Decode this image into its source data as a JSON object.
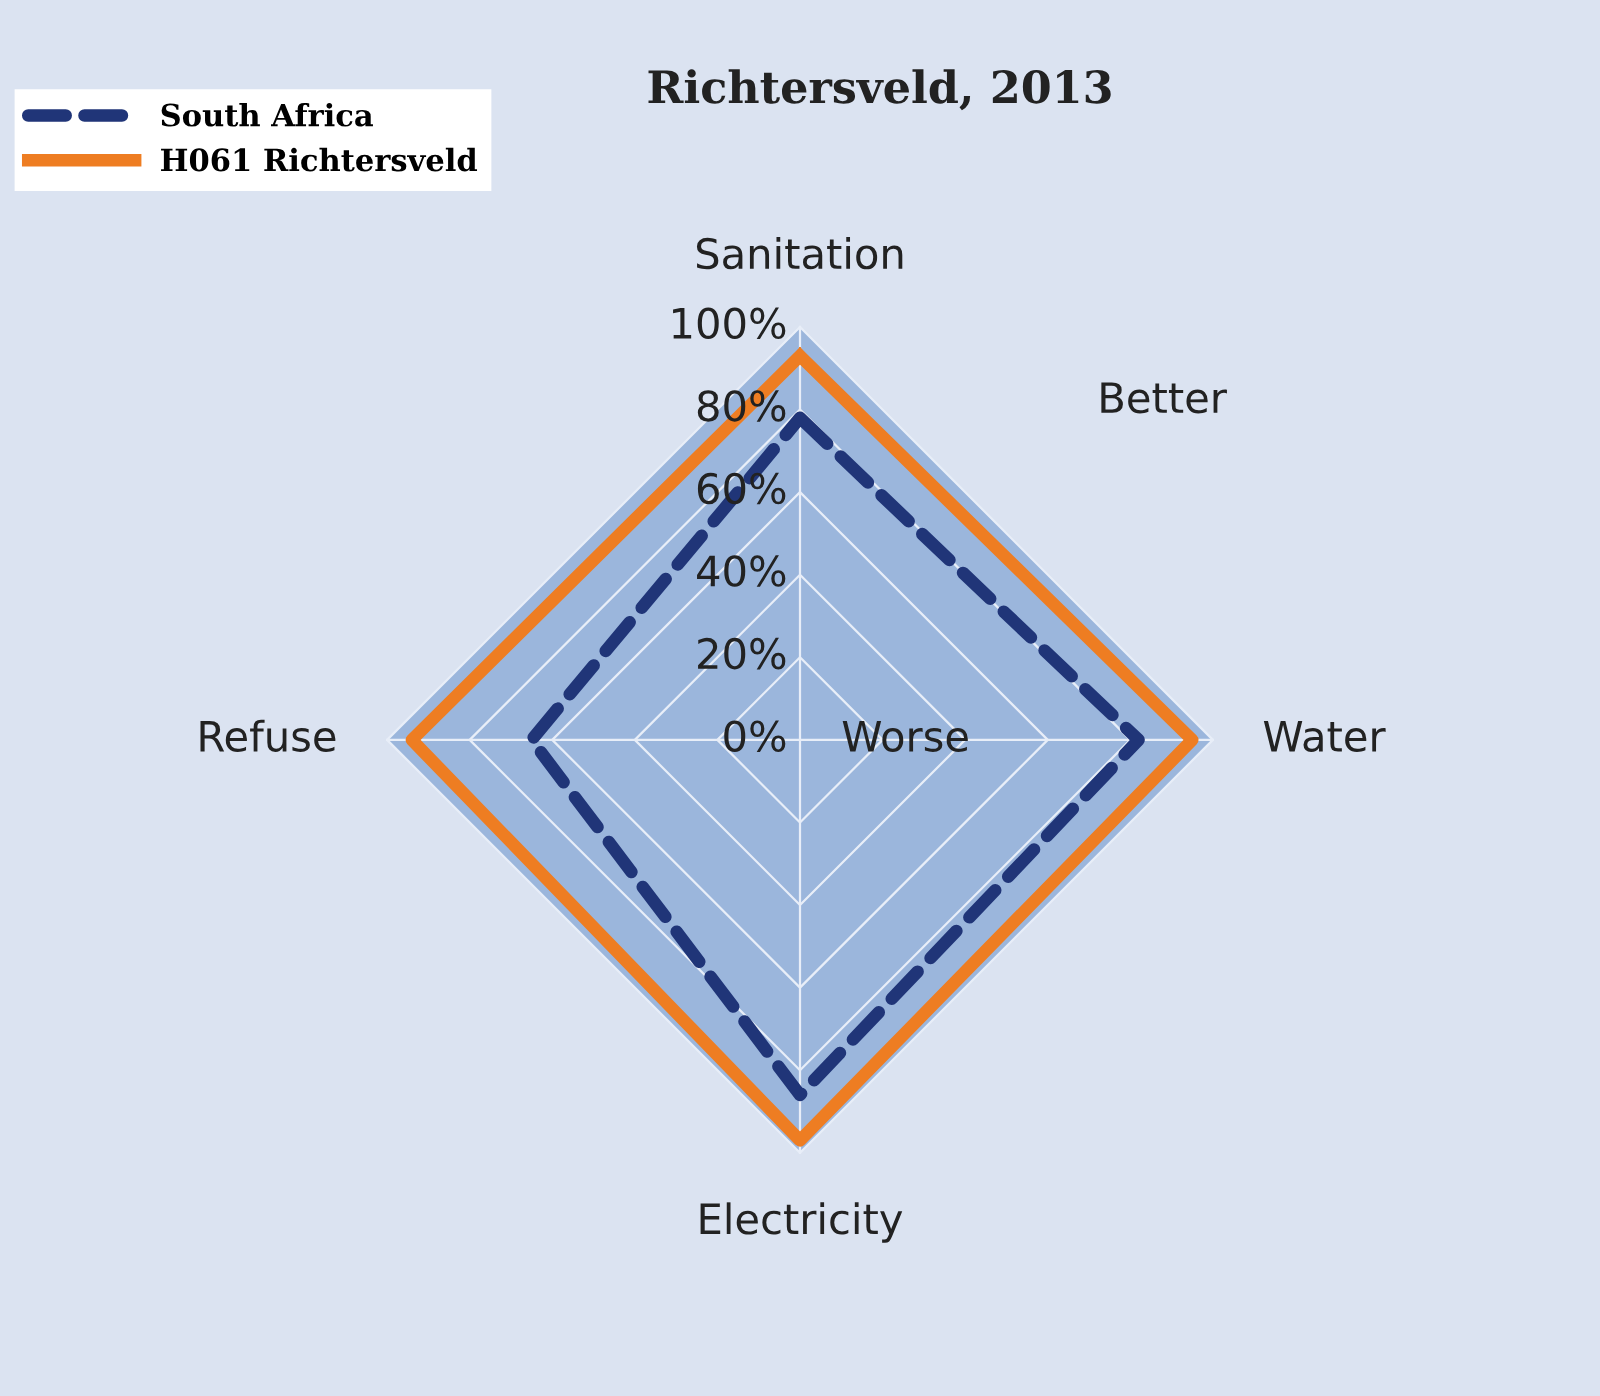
{
  "chart_data": {
    "type": "radar",
    "title": "Richtersveld, 2013",
    "categories": [
      "Sanitation",
      "Water",
      "Electricity",
      "Refuse"
    ],
    "series": [
      {
        "name": "South Africa",
        "color": "#203578",
        "values": [
          78,
          82,
          86,
          65
        ],
        "line_style": "dashed"
      },
      {
        "name": "H061 Richtersveld",
        "color": "#ee7d22",
        "values": [
          93,
          95,
          97,
          94
        ],
        "line_style": "solid"
      }
    ],
    "ylim": [
      0,
      100
    ],
    "yticks": [
      {
        "value": 0,
        "label": "0%"
      },
      {
        "value": 20,
        "label": "20%"
      },
      {
        "value": 40,
        "label": "40%"
      },
      {
        "value": 60,
        "label": "60%"
      },
      {
        "value": 80,
        "label": "80%"
      },
      {
        "value": 100,
        "label": "100%"
      }
    ],
    "annotations": [
      "Better",
      "Worse"
    ],
    "grid": true,
    "legend": "top left",
    "marker": "none"
  }
}
